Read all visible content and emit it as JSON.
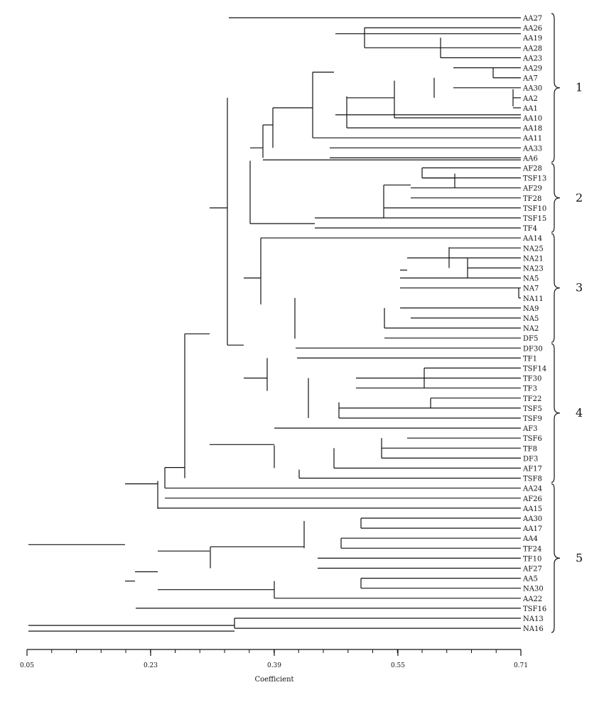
{
  "leaves": [
    "AA27",
    "AA26",
    "AA19",
    "AA28",
    "AA23",
    "AA29",
    "AA7",
    "AA30",
    "AA2",
    "AA1",
    "AA10",
    "AA18",
    "AA11",
    "AA33",
    "AA6",
    "AF28",
    "TSF13",
    "AF29",
    "TF28",
    "TSF10",
    "TSF15",
    "TF4",
    "AA14",
    "NA25",
    "NA21",
    "NA23",
    "NA5",
    "NA7",
    "NA11",
    "NA9",
    "NA5",
    "NA2",
    "DF5",
    "DF30",
    "TF1",
    "TSF14",
    "TF30",
    "TF3",
    "TF22",
    "TSF5",
    "TSF9",
    "AF3",
    "TSF6",
    "TF8",
    "DF3",
    "AF17",
    "TSF8",
    "AA24",
    "AF26",
    "AA15",
    "AA30",
    "AA17",
    "AA4",
    "TF24",
    "TF10",
    "AF27",
    "AA5",
    "NA30",
    "AA22",
    "TSF16",
    "NA13",
    "NA16"
  ],
  "clusters": [
    {
      "label": "1"
    },
    {
      "label": "2"
    },
    {
      "label": "3"
    },
    {
      "label": "4"
    },
    {
      "label": "5"
    }
  ],
  "axis": {
    "title": "Coefficient",
    "ticks": [
      "0.05",
      "0.23",
      "0.39",
      "0.55",
      "0.71"
    ]
  }
}
